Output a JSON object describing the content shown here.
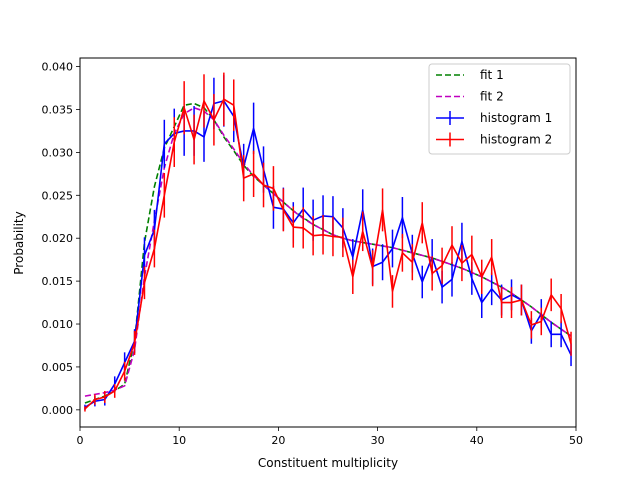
{
  "chart_data": {
    "type": "line",
    "xlabel": "Constituent multiplicity",
    "ylabel": "Probability",
    "xlim": [
      0,
      50
    ],
    "ylim": [
      -0.002,
      0.041
    ],
    "xticks": [
      0,
      10,
      20,
      30,
      40,
      50
    ],
    "xtick_labels": [
      "0",
      "10",
      "20",
      "30",
      "40",
      "50"
    ],
    "yticks": [
      0.0,
      0.005,
      0.01,
      0.015,
      0.02,
      0.025,
      0.03,
      0.035,
      0.04
    ],
    "ytick_labels": [
      "0.000",
      "0.005",
      "0.010",
      "0.015",
      "0.020",
      "0.025",
      "0.030",
      "0.035",
      "0.040"
    ],
    "grid": false,
    "legend_position": "top-right",
    "legend": [
      {
        "label": "fit 1",
        "kind": "dashed"
      },
      {
        "label": "fit 2",
        "kind": "dashed"
      },
      {
        "label": "histogram 1",
        "kind": "errorbar"
      },
      {
        "label": "histogram 2",
        "kind": "errorbar"
      }
    ],
    "x": [
      0.5,
      1.5,
      2.5,
      3.5,
      4.5,
      5.5,
      6.5,
      7.5,
      8.5,
      9.5,
      10.5,
      11.5,
      12.5,
      13.5,
      14.5,
      15.5,
      16.5,
      17.5,
      18.5,
      19.5,
      20.5,
      21.5,
      22.5,
      23.5,
      24.5,
      25.5,
      26.5,
      27.5,
      28.5,
      29.5,
      30.5,
      31.5,
      32.5,
      33.5,
      34.5,
      35.5,
      36.5,
      37.5,
      38.5,
      39.5,
      40.5,
      41.5,
      42.5,
      43.5,
      44.5,
      45.5,
      46.5,
      47.5,
      48.5,
      49.5
    ],
    "series": [
      {
        "name": "histogram 1",
        "kind": "errorbar",
        "color": "#0000ff",
        "values": [
          0.0003,
          0.001,
          0.0012,
          0.003,
          0.0055,
          0.008,
          0.018,
          0.021,
          0.031,
          0.0322,
          0.0325,
          0.0325,
          0.0318,
          0.0357,
          0.036,
          0.0342,
          0.0283,
          0.0328,
          0.028,
          0.0236,
          0.0234,
          0.0218,
          0.0234,
          0.0221,
          0.0226,
          0.0225,
          0.0212,
          0.0178,
          0.0233,
          0.0167,
          0.0172,
          0.0188,
          0.0224,
          0.0182,
          0.0149,
          0.0178,
          0.0143,
          0.0152,
          0.0196,
          0.0153,
          0.0125,
          0.0141,
          0.0128,
          0.0134,
          0.0128,
          0.0092,
          0.0112,
          0.0088,
          0.0088,
          0.0064
        ],
        "errors": [
          0.0003,
          0.0006,
          0.0007,
          0.0009,
          0.0012,
          0.0014,
          0.0021,
          0.0023,
          0.0028,
          0.0029,
          0.0029,
          0.0029,
          0.0029,
          0.003,
          0.003,
          0.003,
          0.0027,
          0.003,
          0.0027,
          0.0025,
          0.0025,
          0.0024,
          0.0025,
          0.0024,
          0.0024,
          0.0024,
          0.0023,
          0.0021,
          0.0024,
          0.0021,
          0.0021,
          0.0022,
          0.0024,
          0.0022,
          0.0019,
          0.0021,
          0.0019,
          0.002,
          0.0022,
          0.0019,
          0.0018,
          0.0019,
          0.0018,
          0.0018,
          0.0018,
          0.0015,
          0.0017,
          0.0015,
          0.0015,
          0.0013
        ]
      },
      {
        "name": "histogram 2",
        "kind": "errorbar",
        "color": "#ff0000",
        "values": [
          0.0001,
          0.0012,
          0.0015,
          0.0022,
          0.0045,
          0.0078,
          0.0148,
          0.0188,
          0.025,
          0.0312,
          0.0352,
          0.0315,
          0.036,
          0.0338,
          0.0362,
          0.0355,
          0.027,
          0.0275,
          0.0262,
          0.0258,
          0.0233,
          0.0213,
          0.0212,
          0.0203,
          0.0204,
          0.0202,
          0.0201,
          0.0155,
          0.0208,
          0.0165,
          0.0233,
          0.0138,
          0.0183,
          0.0172,
          0.0218,
          0.0159,
          0.0168,
          0.0192,
          0.0171,
          0.0181,
          0.0155,
          0.0178,
          0.0125,
          0.0125,
          0.0128,
          0.0099,
          0.0103,
          0.0134,
          0.0118,
          0.0077
        ],
        "errors": [
          0.0003,
          0.0006,
          0.0007,
          0.0008,
          0.0011,
          0.0014,
          0.0019,
          0.0022,
          0.0026,
          0.0029,
          0.0031,
          0.0029,
          0.0031,
          0.003,
          0.0031,
          0.003,
          0.0027,
          0.0027,
          0.0026,
          0.0026,
          0.0025,
          0.0024,
          0.0024,
          0.0023,
          0.0023,
          0.0023,
          0.0023,
          0.002,
          0.0023,
          0.0021,
          0.0025,
          0.0019,
          0.0022,
          0.0021,
          0.0024,
          0.002,
          0.0021,
          0.0022,
          0.0021,
          0.0022,
          0.002,
          0.0021,
          0.0018,
          0.0018,
          0.0018,
          0.0016,
          0.0016,
          0.0019,
          0.0017,
          0.0014
        ]
      },
      {
        "name": "fit 1",
        "kind": "dashed",
        "color": "#008000",
        "values": [
          0.0008,
          0.0012,
          0.0016,
          0.0022,
          0.003,
          0.008,
          0.0195,
          0.026,
          0.0305,
          0.033,
          0.0355,
          0.0357,
          0.0352,
          0.0338,
          0.0318,
          0.0302,
          0.0285,
          0.0272,
          0.0262,
          0.0252,
          0.0242,
          0.0232,
          0.0224,
          0.0216,
          0.021,
          0.0204,
          0.02,
          0.0197,
          0.0195,
          0.0193,
          0.0191,
          0.0189,
          0.0186,
          0.0183,
          0.018,
          0.0177,
          0.0173,
          0.0169,
          0.0165,
          0.016,
          0.0155,
          0.0149,
          0.0143,
          0.0136,
          0.0128,
          0.012,
          0.0111,
          0.0102,
          0.0094,
          0.0086
        ]
      },
      {
        "name": "fit 2",
        "kind": "dashed",
        "color": "#bf00bf",
        "values": [
          0.0016,
          0.0018,
          0.002,
          0.0023,
          0.0028,
          0.007,
          0.0155,
          0.022,
          0.0282,
          0.0322,
          0.0345,
          0.0352,
          0.0348,
          0.0338,
          0.032,
          0.0304,
          0.0287,
          0.0273,
          0.0262,
          0.0252,
          0.0242,
          0.0232,
          0.0223,
          0.0216,
          0.021,
          0.0204,
          0.02,
          0.0197,
          0.0195,
          0.0193,
          0.0191,
          0.0189,
          0.0186,
          0.0183,
          0.018,
          0.0177,
          0.0173,
          0.0169,
          0.0165,
          0.016,
          0.0155,
          0.0149,
          0.0143,
          0.0136,
          0.0128,
          0.012,
          0.0111,
          0.0102,
          0.0094,
          0.0086
        ]
      }
    ]
  }
}
